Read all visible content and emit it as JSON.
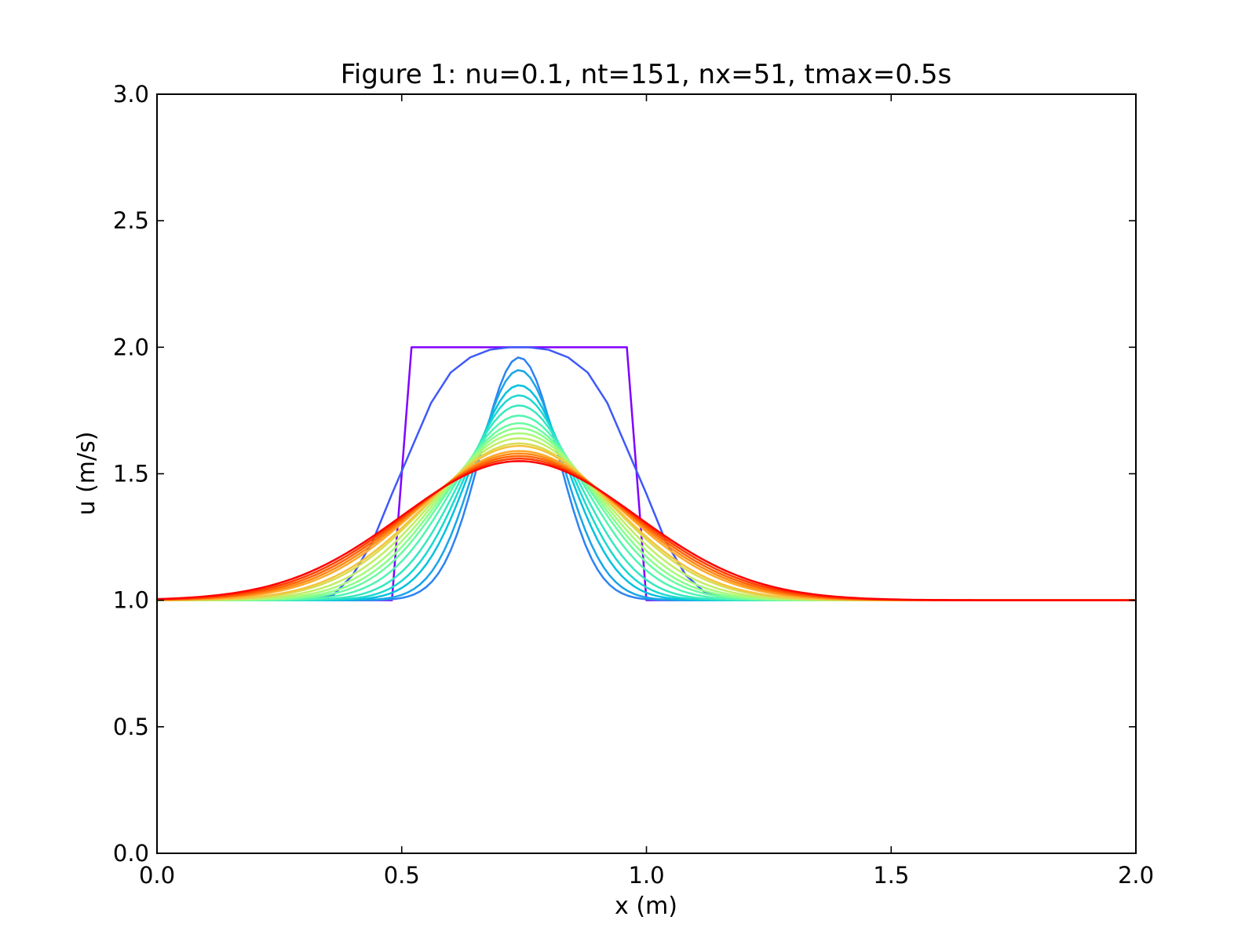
{
  "chart_data": {
    "type": "line",
    "title": "Figure 1: nu=0.1, nt=151, nx=51, tmax=0.5s",
    "xlabel": "x (m)",
    "ylabel": "u (m/s)",
    "xlim": [
      0.0,
      2.0
    ],
    "ylim": [
      0.0,
      3.0
    ],
    "xticks": [
      "0.0",
      "0.5",
      "1.0",
      "1.5",
      "2.0"
    ],
    "yticks": [
      "0.0",
      "0.5",
      "1.0",
      "1.5",
      "2.0",
      "2.5",
      "3.0"
    ],
    "grid": false,
    "legend": "none",
    "colormap": "rainbow",
    "series": [
      {
        "color": "#8000ff",
        "x": [
          0.0,
          0.48,
          0.52,
          0.96,
          1.0,
          2.0
        ],
        "y": [
          1.0,
          1.0,
          2.0,
          2.0,
          1.0,
          1.0
        ]
      },
      {
        "color": "#3f59f9",
        "x": [
          0.0,
          0.3,
          0.36,
          0.4,
          0.44,
          0.48,
          0.52,
          0.56,
          0.6,
          0.64,
          0.68,
          0.72,
          0.76,
          0.8,
          0.84,
          0.88,
          0.92,
          0.96,
          1.0,
          1.04,
          1.08,
          1.12,
          1.16,
          1.2,
          1.3,
          2.0
        ],
        "y": [
          1.0,
          1.0,
          1.02,
          1.1,
          1.23,
          1.42,
          1.6,
          1.78,
          1.9,
          1.96,
          1.99,
          2.0,
          2.0,
          1.99,
          1.96,
          1.9,
          1.78,
          1.6,
          1.42,
          1.23,
          1.1,
          1.03,
          1.01,
          1.0,
          1.0,
          1.0
        ]
      },
      {
        "color": "#2d83f2",
        "peak": 1.96
      },
      {
        "color": "#1aa5e8",
        "peak": 1.91
      },
      {
        "color": "#07c1de",
        "peak": 1.85
      },
      {
        "color": "#1ad8d0",
        "peak": 1.81
      },
      {
        "color": "#35e7c1",
        "peak": 1.77
      },
      {
        "color": "#50f5b1",
        "peak": 1.73
      },
      {
        "color": "#6afba0",
        "peak": 1.7
      },
      {
        "color": "#88ff8c",
        "peak": 1.68
      },
      {
        "color": "#a5fb79",
        "peak": 1.66
      },
      {
        "color": "#c0ee66",
        "peak": 1.64
      },
      {
        "color": "#dadc52",
        "peak": 1.62
      },
      {
        "color": "#f3c43e",
        "peak": 1.61
      },
      {
        "color": "#ffa82b",
        "peak": 1.59
      },
      {
        "color": "#ff8817",
        "peak": 1.58
      },
      {
        "color": "#ff6304",
        "peak": 1.57
      },
      {
        "color": "#ff3d00",
        "peak": 1.56
      },
      {
        "color": "#ff0000",
        "peak": 1.55
      }
    ]
  }
}
